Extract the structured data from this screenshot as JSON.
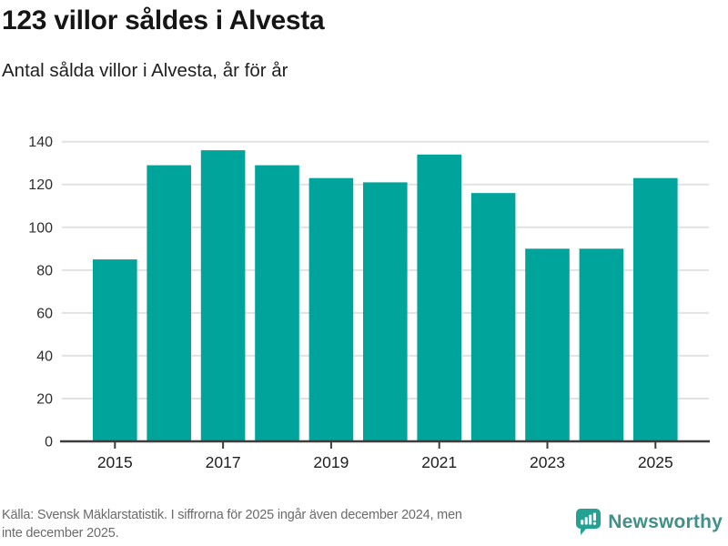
{
  "header": {
    "title": "123 villor såldes i Alvesta",
    "subtitle": "Antal sålda villor i Alvesta, år för år"
  },
  "chart_data": {
    "type": "bar",
    "title": "123 villor såldes i Alvesta",
    "subtitle": "Antal sålda villor i Alvesta, år för år",
    "categories": [
      2015,
      2016,
      2017,
      2018,
      2019,
      2020,
      2021,
      2022,
      2023,
      2024,
      2025
    ],
    "values": [
      85,
      129,
      136,
      129,
      123,
      121,
      134,
      116,
      90,
      90,
      123
    ],
    "xlabel": "",
    "ylabel": "",
    "ylim": [
      0,
      140
    ],
    "y_ticks": [
      0,
      20,
      40,
      60,
      80,
      100,
      120,
      140
    ],
    "x_tick_labels": [
      "2015",
      "2017",
      "2019",
      "2021",
      "2023",
      "2025"
    ],
    "grid": "on",
    "legend": "none",
    "bar_color": "#00a49b",
    "grid_color": "#e2e2e2",
    "axis_color": "#3d3d3d",
    "y_label_color": "#2e2e2e",
    "x_label_color": "#1f1f1f"
  },
  "footer": {
    "source_line1": "Källa: Svensk Mäklarstatistik. I siffrorna för 2025 ingår även december 2024, men",
    "source_line2": "inte december 2025.",
    "brand": {
      "name": "Newsworthy",
      "icon": "bar-chart-speech-bubble-icon",
      "name_color": "#41908a",
      "icon_color": "#23a294"
    }
  }
}
